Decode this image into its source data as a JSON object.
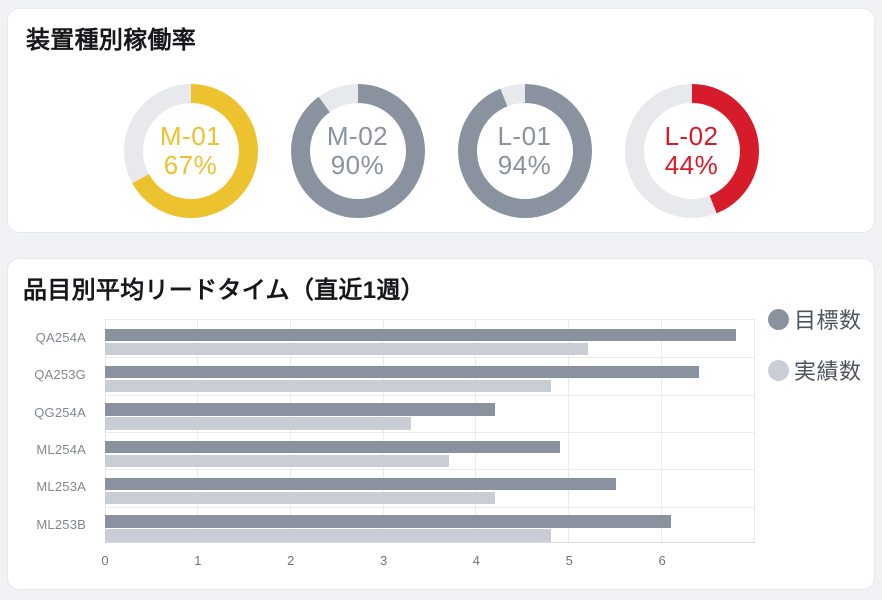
{
  "colors": {
    "page_bg": "#F1F2F5",
    "card_bg": "#FFFFFF",
    "card_border": "#E7E8EC",
    "donut_track": "#E8E9EC",
    "gauge_yellow": "#ECC22F",
    "gauge_gray": "#8A92A0",
    "gauge_red": "#D61B2A",
    "bar_target": "#8A92A0",
    "bar_actual": "#C9CED6",
    "grid_line": "#E9EAEC",
    "axis_line": "#D9DADE",
    "title_text": "#15171A",
    "category_text": "#83888E",
    "tick_text": "#6F7378",
    "legend_text": "#4E545C"
  },
  "utilization_card": {
    "title": "装置種別稼働率"
  },
  "leadtime_card": {
    "title": "品目別平均リードタイム（直近1週）"
  },
  "chart_data": [
    {
      "type": "pie",
      "variant": "donut-gauges",
      "title": "装置種別稼働率",
      "start_angle_deg": 0,
      "direction": "clockwise",
      "track_color": "#E8E9EC",
      "series": [
        {
          "name": "M-01",
          "value": 67,
          "unit": "%",
          "value_text": "67%",
          "color": "#ECC22F"
        },
        {
          "name": "M-02",
          "value": 90,
          "unit": "%",
          "value_text": "90%",
          "color": "#8A92A0"
        },
        {
          "name": "L-01",
          "value": 94,
          "unit": "%",
          "value_text": "94%",
          "color": "#8A92A0"
        },
        {
          "name": "L-02",
          "value": 44,
          "unit": "%",
          "value_text": "44%",
          "color": "#D61B2A"
        }
      ]
    },
    {
      "type": "bar",
      "orientation": "horizontal",
      "title": "品目別平均リードタイム（直近1週）",
      "categories": [
        "QA254A",
        "QA253G",
        "QG254A",
        "ML254A",
        "ML253A",
        "ML253B"
      ],
      "series": [
        {
          "name": "目標数",
          "color": "#8A92A0",
          "values": [
            6.8,
            6.4,
            4.2,
            4.9,
            5.5,
            6.1
          ]
        },
        {
          "name": "実績数",
          "color": "#C9CED6",
          "values": [
            5.2,
            4.8,
            3.3,
            3.7,
            4.2,
            4.8
          ]
        }
      ],
      "xlim": [
        0,
        7
      ],
      "xticks": [
        0,
        1,
        2,
        3,
        4,
        5,
        6
      ],
      "grid": true,
      "legend_position": "top-right"
    }
  ]
}
